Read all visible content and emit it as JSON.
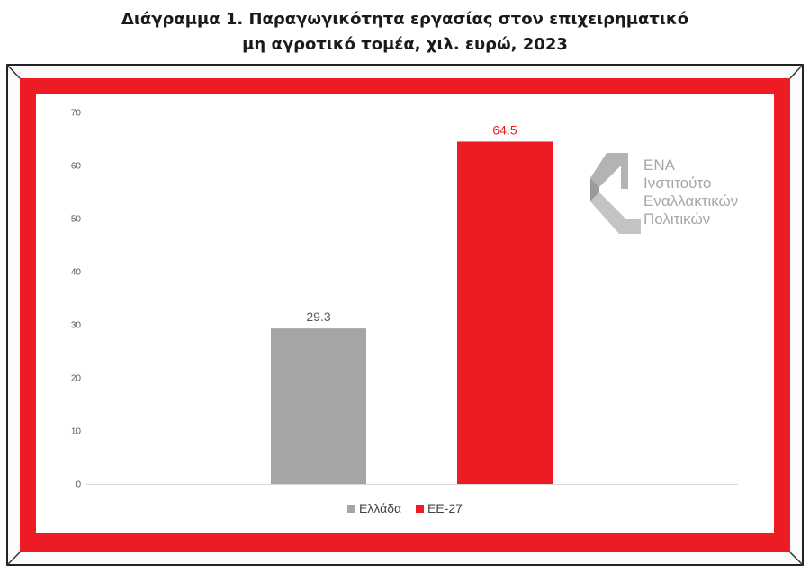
{
  "title_line1": "Διάγραμμα 1.  Παραγωγικότητα εργασίας στον επιχειρηματικό",
  "title_line2": "μη αγροτικό τομέα, χιλ. ευρώ, 2023",
  "logo": {
    "icon": "ena-logo-icon",
    "line1": "ΕΝΑ",
    "line2": "Ινστιτούτο",
    "line3": "Εναλλακτικών",
    "line4": "Πολιτικών"
  },
  "colors": {
    "frame_red": "#ed1c24",
    "greece": "#a5a5a5",
    "eu27": "#ed1c24"
  },
  "chart_data": {
    "type": "bar",
    "categories": [
      "Ελλάδα",
      "ΕΕ-27"
    ],
    "values": [
      29.3,
      64.5
    ],
    "value_labels": [
      "29.3",
      "64.5"
    ],
    "series_colors": [
      "#a5a5a5",
      "#ed1c24"
    ],
    "label_colors": [
      "#595959",
      "#ed1c24"
    ],
    "yticks": [
      "0",
      "10",
      "20",
      "30",
      "40",
      "50",
      "60",
      "70"
    ],
    "ylim": [
      0,
      70
    ],
    "grid": false,
    "legend_position": "bottom",
    "title": "Διάγραμμα 1.  Παραγωγικότητα εργασίας στον επιχειρηματικό μη αγροτικό τομέα, χιλ. ευρώ, 2023",
    "xlabel": "",
    "ylabel": ""
  }
}
